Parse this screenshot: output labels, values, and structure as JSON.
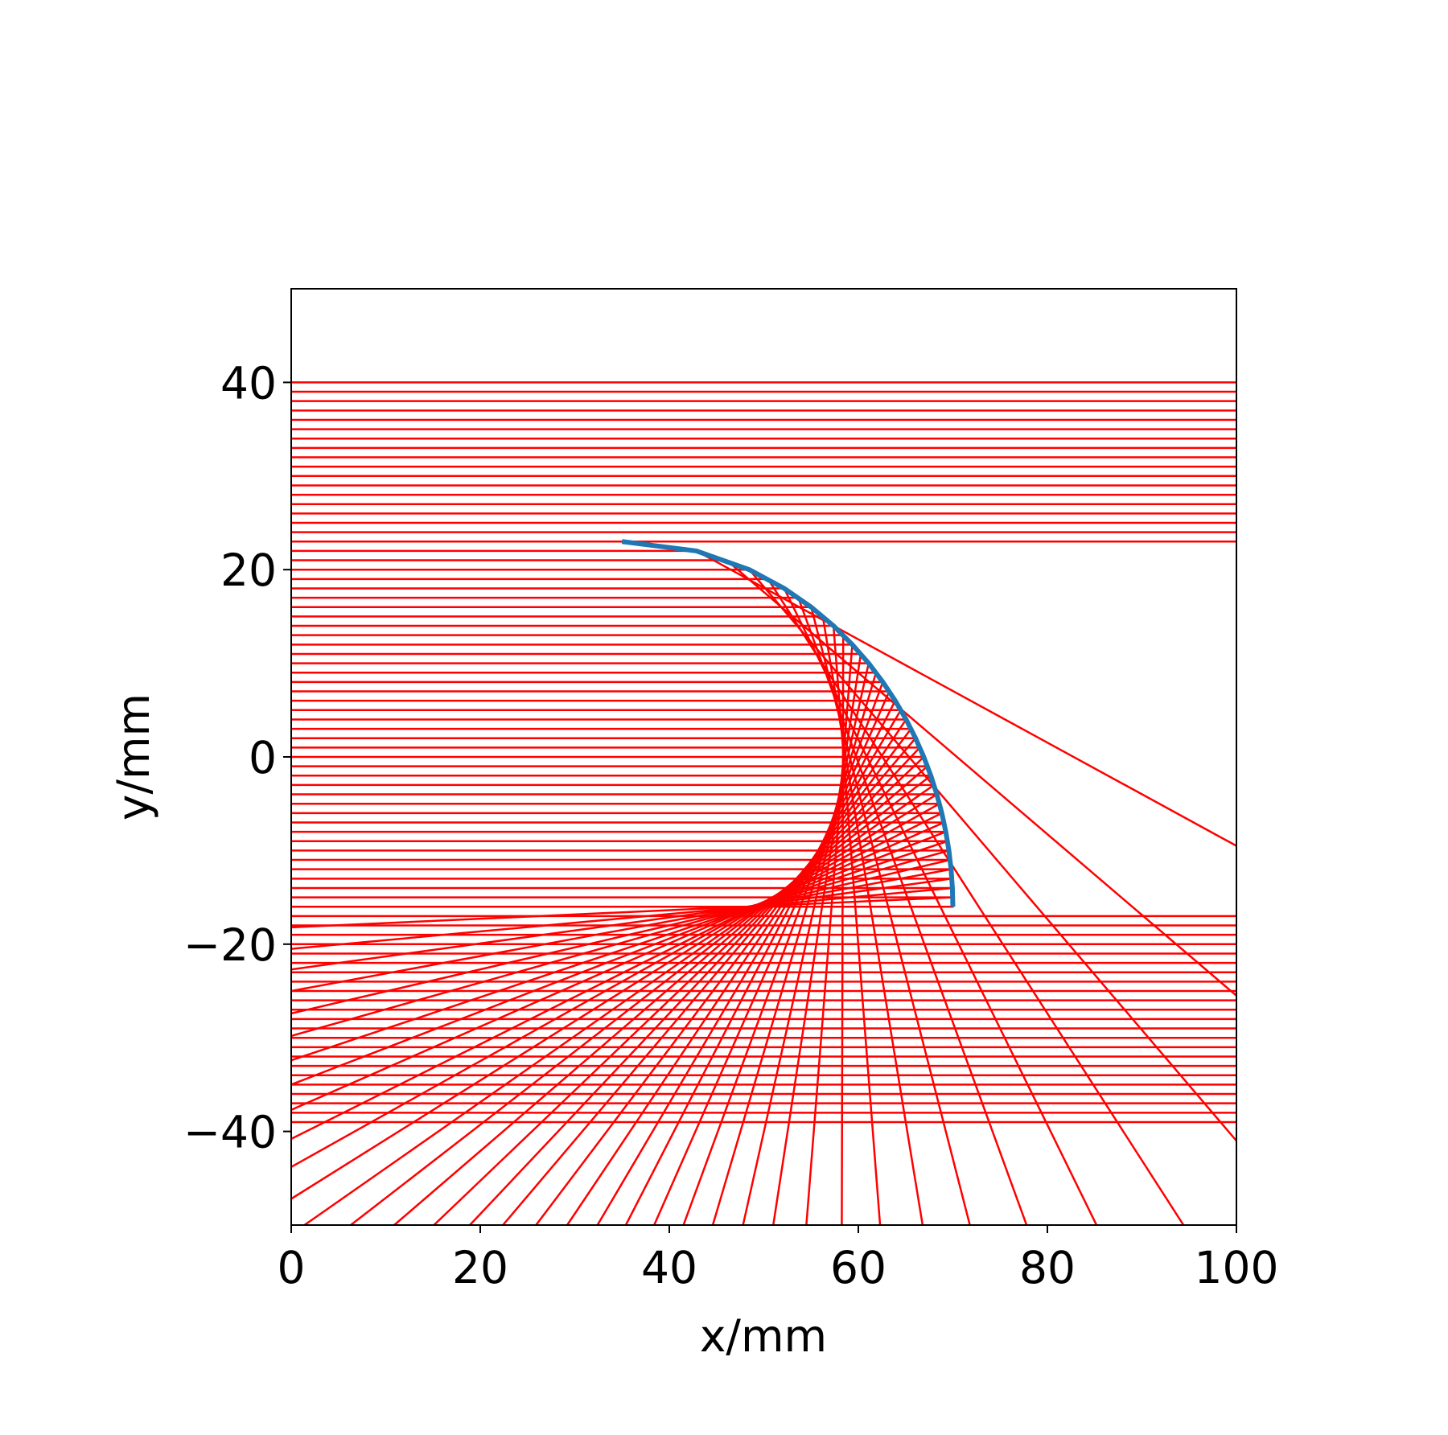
{
  "chart_data": {
    "type": "ray",
    "xlabel": "x/mm",
    "ylabel": "y/mm",
    "xlim": [
      0,
      100
    ],
    "ylim": [
      -50,
      50
    ],
    "xticks": [
      0,
      20,
      40,
      60,
      80,
      100
    ],
    "yticks": [
      {
        "value": -40,
        "label": "−40"
      },
      {
        "value": -20,
        "label": "−20"
      },
      0,
      20,
      40
    ],
    "mirror": {
      "color": "#1f77b4",
      "x": [
        35,
        42.87,
        48.46,
        52.15,
        55.01,
        57.37,
        59.36,
        61.09,
        62.59,
        63.9,
        65.05,
        66.05,
        66.92,
        67.67,
        68.3,
        68.83,
        69.25,
        69.58,
        69.81,
        69.95,
        70
      ],
      "y": [
        23,
        22,
        20,
        18,
        16,
        14,
        12,
        10,
        8,
        6,
        4,
        2,
        0,
        -2,
        -4,
        -6,
        -8,
        -10,
        -12,
        -14,
        -16
      ]
    },
    "rays": {
      "color": "#ff0000",
      "lines": [
        {
          "x": [
            0,
            100
          ],
          "y": [
            40,
            40
          ]
        },
        {
          "x": [
            0,
            100
          ],
          "y": [
            39,
            39
          ]
        },
        {
          "x": [
            0,
            100
          ],
          "y": [
            38,
            38
          ]
        },
        {
          "x": [
            0,
            100
          ],
          "y": [
            37,
            37
          ]
        },
        {
          "x": [
            0,
            100
          ],
          "y": [
            36,
            36
          ]
        },
        {
          "x": [
            0,
            100
          ],
          "y": [
            35,
            35
          ]
        },
        {
          "x": [
            0,
            100
          ],
          "y": [
            34,
            34
          ]
        },
        {
          "x": [
            0,
            100
          ],
          "y": [
            33,
            33
          ]
        },
        {
          "x": [
            0,
            100
          ],
          "y": [
            32,
            32
          ]
        },
        {
          "x": [
            0,
            100
          ],
          "y": [
            31,
            31
          ]
        },
        {
          "x": [
            0,
            100
          ],
          "y": [
            30,
            30
          ]
        },
        {
          "x": [
            0,
            100
          ],
          "y": [
            29,
            29
          ]
        },
        {
          "x": [
            0,
            100
          ],
          "y": [
            28,
            28
          ]
        },
        {
          "x": [
            0,
            100
          ],
          "y": [
            27,
            27
          ]
        },
        {
          "x": [
            0,
            100
          ],
          "y": [
            26,
            26
          ]
        },
        {
          "x": [
            0,
            100
          ],
          "y": [
            25,
            25
          ]
        },
        {
          "x": [
            0,
            100
          ],
          "y": [
            24,
            24
          ]
        },
        {
          "x": [
            0,
            100
          ],
          "y": [
            23,
            23
          ]
        },
        {
          "x": [
            0,
            42.87,
            100
          ],
          "y": [
            22,
            22,
            -9.5
          ]
        },
        {
          "x": [
            0,
            46.07,
            100
          ],
          "y": [
            21,
            21,
            -25.5
          ]
        },
        {
          "x": [
            0,
            48.46,
            100
          ],
          "y": [
            20,
            20,
            -41
          ]
        },
        {
          "x": [
            0,
            50.44,
            94.4
          ],
          "y": [
            19,
            19,
            -50
          ]
        },
        {
          "x": [
            0,
            52.15,
            85.2
          ],
          "y": [
            18,
            18,
            -50
          ]
        },
        {
          "x": [
            0,
            53.65,
            77.8
          ],
          "y": [
            17,
            17,
            -50
          ]
        },
        {
          "x": [
            0,
            55.01,
            71.8
          ],
          "y": [
            16,
            16,
            -50
          ]
        },
        {
          "x": [
            0,
            56.24,
            66.8
          ],
          "y": [
            15,
            15,
            -50
          ]
        },
        {
          "x": [
            0,
            57.37,
            62.3
          ],
          "y": [
            14,
            14,
            -50
          ]
        },
        {
          "x": [
            0,
            58.4,
            58.25
          ],
          "y": [
            13,
            13,
            -50
          ]
        },
        {
          "x": [
            0,
            59.36,
            54.5
          ],
          "y": [
            12,
            12,
            -50
          ]
        },
        {
          "x": [
            0,
            60.26,
            51
          ],
          "y": [
            11,
            11,
            -50
          ]
        },
        {
          "x": [
            0,
            61.09,
            47.8
          ],
          "y": [
            10,
            10,
            -50
          ]
        },
        {
          "x": [
            0,
            61.87,
            44.6
          ],
          "y": [
            9,
            9,
            -50
          ]
        },
        {
          "x": [
            0,
            62.59,
            41.5
          ],
          "y": [
            8,
            8,
            -50
          ]
        },
        {
          "x": [
            0,
            63.27,
            38.4
          ],
          "y": [
            7,
            7,
            -50
          ]
        },
        {
          "x": [
            0,
            63.9,
            35.4
          ],
          "y": [
            6,
            6,
            -50
          ]
        },
        {
          "x": [
            0,
            64.49,
            32.4
          ],
          "y": [
            5,
            5,
            -50
          ]
        },
        {
          "x": [
            0,
            65.05,
            29.2
          ],
          "y": [
            4,
            4,
            -50
          ]
        },
        {
          "x": [
            0,
            65.57,
            25.9
          ],
          "y": [
            3,
            3,
            -50
          ]
        },
        {
          "x": [
            0,
            66.05,
            22.4
          ],
          "y": [
            2,
            2,
            -50
          ]
        },
        {
          "x": [
            0,
            66.5,
            18.9
          ],
          "y": [
            1,
            1,
            -50
          ]
        },
        {
          "x": [
            0,
            66.92,
            15.1
          ],
          "y": [
            0,
            0,
            -50
          ]
        },
        {
          "x": [
            0,
            67.31,
            10.9
          ],
          "y": [
            -1,
            -1,
            -50
          ]
        },
        {
          "x": [
            0,
            67.67,
            6.3
          ],
          "y": [
            -2,
            -2,
            -50
          ]
        },
        {
          "x": [
            0,
            68,
            1.4
          ],
          "y": [
            -3,
            -3,
            -50
          ]
        },
        {
          "x": [
            0,
            68.3,
            0
          ],
          "y": [
            -4,
            -4,
            -47.2
          ]
        },
        {
          "x": [
            0,
            68.58,
            0
          ],
          "y": [
            -5,
            -5,
            -43.8
          ]
        },
        {
          "x": [
            0,
            68.83,
            0
          ],
          "y": [
            -6,
            -6,
            -40.8
          ]
        },
        {
          "x": [
            0,
            69.06,
            0
          ],
          "y": [
            -7,
            -7,
            -37.7
          ]
        },
        {
          "x": [
            0,
            69.25,
            0
          ],
          "y": [
            -8,
            -8,
            -35
          ]
        },
        {
          "x": [
            0,
            69.43,
            0
          ],
          "y": [
            -9,
            -9,
            -32.4
          ]
        },
        {
          "x": [
            0,
            69.58,
            0
          ],
          "y": [
            -10,
            -10,
            -29.8
          ]
        },
        {
          "x": [
            0,
            69.71,
            0
          ],
          "y": [
            -11,
            -11,
            -27.4
          ]
        },
        {
          "x": [
            0,
            69.81,
            0
          ],
          "y": [
            -12,
            -12,
            -25
          ]
        },
        {
          "x": [
            0,
            69.9,
            0
          ],
          "y": [
            -13,
            -13,
            -22.7
          ]
        },
        {
          "x": [
            0,
            69.95,
            0
          ],
          "y": [
            -14,
            -14,
            -20.5
          ]
        },
        {
          "x": [
            0,
            69.99,
            0
          ],
          "y": [
            -15,
            -15,
            -18.2
          ]
        },
        {
          "x": [
            0,
            70,
            0
          ],
          "y": [
            -16,
            -16,
            -16
          ]
        },
        {
          "x": [
            0,
            100
          ],
          "y": [
            -17,
            -17
          ]
        },
        {
          "x": [
            0,
            100
          ],
          "y": [
            -18,
            -18
          ]
        },
        {
          "x": [
            0,
            100
          ],
          "y": [
            -19,
            -19
          ]
        },
        {
          "x": [
            0,
            100
          ],
          "y": [
            -20,
            -20
          ]
        },
        {
          "x": [
            0,
            100
          ],
          "y": [
            -21,
            -21
          ]
        },
        {
          "x": [
            0,
            100
          ],
          "y": [
            -22,
            -22
          ]
        },
        {
          "x": [
            0,
            100
          ],
          "y": [
            -23,
            -23
          ]
        },
        {
          "x": [
            0,
            100
          ],
          "y": [
            -24,
            -24
          ]
        },
        {
          "x": [
            0,
            100
          ],
          "y": [
            -25,
            -25
          ]
        },
        {
          "x": [
            0,
            100
          ],
          "y": [
            -26,
            -26
          ]
        },
        {
          "x": [
            0,
            100
          ],
          "y": [
            -27,
            -27
          ]
        },
        {
          "x": [
            0,
            100
          ],
          "y": [
            -28,
            -28
          ]
        },
        {
          "x": [
            0,
            100
          ],
          "y": [
            -29,
            -29
          ]
        },
        {
          "x": [
            0,
            100
          ],
          "y": [
            -30,
            -30
          ]
        },
        {
          "x": [
            0,
            100
          ],
          "y": [
            -31,
            -31
          ]
        },
        {
          "x": [
            0,
            100
          ],
          "y": [
            -32,
            -32
          ]
        },
        {
          "x": [
            0,
            100
          ],
          "y": [
            -33,
            -33
          ]
        },
        {
          "x": [
            0,
            100
          ],
          "y": [
            -34,
            -34
          ]
        },
        {
          "x": [
            0,
            100
          ],
          "y": [
            -35,
            -35
          ]
        },
        {
          "x": [
            0,
            100
          ],
          "y": [
            -36,
            -36
          ]
        },
        {
          "x": [
            0,
            100
          ],
          "y": [
            -37,
            -37
          ]
        },
        {
          "x": [
            0,
            100
          ],
          "y": [
            -38,
            -38
          ]
        },
        {
          "x": [
            0,
            100
          ],
          "y": [
            -39,
            -39
          ]
        }
      ]
    }
  }
}
